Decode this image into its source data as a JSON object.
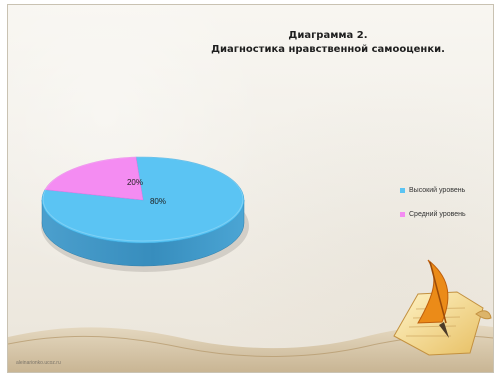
{
  "slide": {
    "title_line_1": "Диаграмма 2.",
    "title_line_2": "Диагностика нравственной самооценки.",
    "footer": "aleinarionko.ucoz.ru"
  },
  "chart_data": {
    "type": "pie",
    "title": "Диаграмма 2. Диагностика нравственной самооценки.",
    "categories": [
      "Высокий уровень",
      "Средний уровень"
    ],
    "values": [
      80,
      20
    ],
    "labels": [
      "80%",
      "20%"
    ],
    "colors": [
      "#5bc4f3",
      "#f48cf2"
    ],
    "legend_position": "right"
  },
  "colors": {
    "background": "#f4f1ea",
    "title": "#1f1f1f",
    "footer_wave": "#c9b99b"
  },
  "icons": {
    "decoration": "quill-pen-on-paper-icon"
  }
}
